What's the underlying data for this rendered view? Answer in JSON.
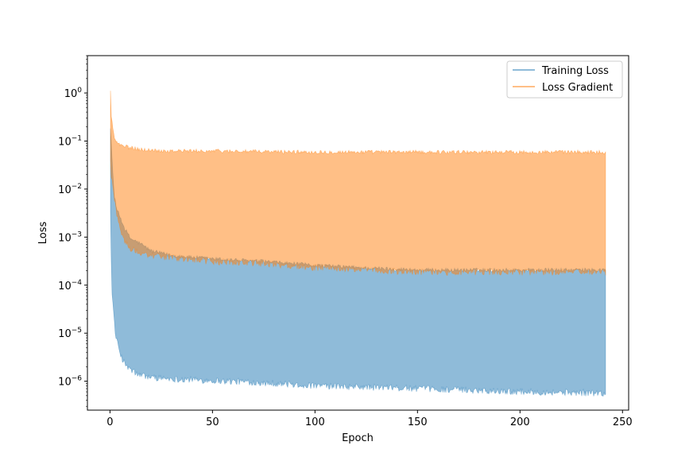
{
  "chart_data": {
    "type": "area",
    "xlabel": "Epoch",
    "ylabel": "Loss",
    "xlim": [
      -11,
      253
    ],
    "ylim": [
      2.5e-07,
      6
    ],
    "yscale": "log",
    "x_ticks": [
      0,
      50,
      100,
      150,
      200,
      250
    ],
    "x_tick_labels": [
      "0",
      "50",
      "100",
      "150",
      "200",
      "250"
    ],
    "y_ticks": [
      1e-06,
      1e-05,
      0.0001,
      0.001,
      0.01,
      0.1,
      1
    ],
    "y_tick_labels": [
      {
        "base": "10",
        "exp": "−6"
      },
      {
        "base": "10",
        "exp": "−5"
      },
      {
        "base": "10",
        "exp": "−4"
      },
      {
        "base": "10",
        "exp": "−3"
      },
      {
        "base": "10",
        "exp": "−2"
      },
      {
        "base": "10",
        "exp": "−1"
      },
      {
        "base": "10",
        "exp": "0"
      }
    ],
    "grid": false,
    "legend_position": "top-right",
    "series": [
      {
        "name": "Training Loss",
        "color": "#1f77b4",
        "opacity": 0.5,
        "x": [
          0,
          0.5,
          1,
          2,
          3,
          5,
          7,
          10,
          15,
          20,
          30,
          50,
          75,
          100,
          125,
          150,
          175,
          200,
          225,
          242
        ],
        "upper": [
          0.3,
          0.12,
          0.04,
          0.008,
          0.004,
          0.0025,
          0.0015,
          0.0009,
          0.0007,
          0.0005,
          0.0004,
          0.00034,
          0.0003,
          0.00025,
          0.00022,
          0.0002,
          0.0002,
          0.0002,
          0.0002,
          0.0002
        ],
        "lower": [
          0.03,
          0.0005,
          8e-05,
          2e-05,
          8e-06,
          4e-06,
          2.5e-06,
          1.8e-06,
          1.4e-06,
          1.3e-06,
          1.2e-06,
          1.1e-06,
          1e-06,
          8.5e-07,
          8e-07,
          7.5e-07,
          7e-07,
          6.5e-07,
          6.2e-07,
          6e-07
        ]
      },
      {
        "name": "Loss Gradient",
        "color": "#ff7f0e",
        "opacity": 0.5,
        "x": [
          0,
          0.5,
          1,
          2,
          3,
          5,
          7,
          10,
          15,
          20,
          30,
          50,
          75,
          100,
          125,
          150,
          175,
          200,
          225,
          242
        ],
        "upper": [
          3.0,
          0.35,
          0.25,
          0.12,
          0.09,
          0.08,
          0.075,
          0.07,
          0.065,
          0.062,
          0.06,
          0.06,
          0.058,
          0.057,
          0.057,
          0.057,
          0.057,
          0.057,
          0.057,
          0.057
        ],
        "lower": [
          0.1,
          0.02,
          0.015,
          0.008,
          0.004,
          0.0015,
          0.0009,
          0.0006,
          0.0005,
          0.00045,
          0.0004,
          0.00033,
          0.0003,
          0.00025,
          0.00022,
          0.0002,
          0.0002,
          0.0002,
          0.0002,
          0.0002
        ]
      }
    ]
  }
}
